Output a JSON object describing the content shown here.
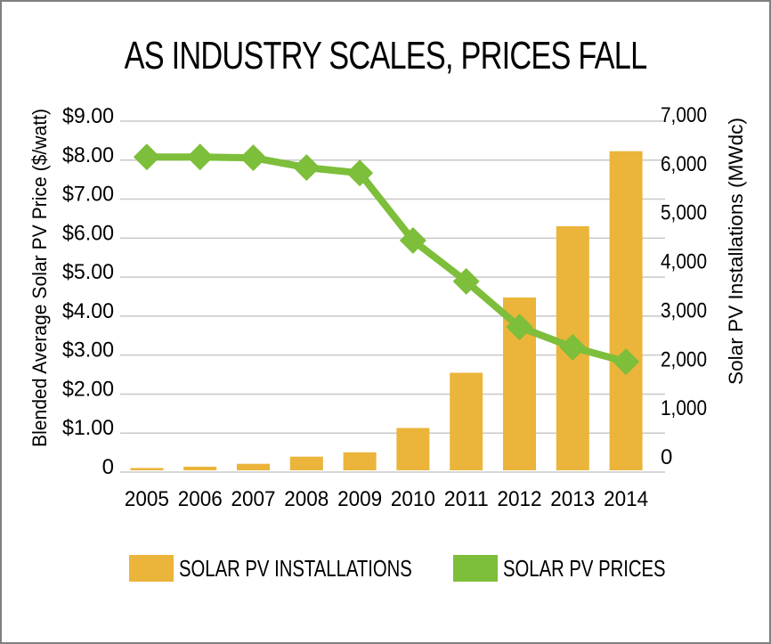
{
  "chart_data": {
    "type": "bar+line",
    "title": "AS INDUSTRY SCALES, PRICES FALL",
    "categories": [
      "2005",
      "2006",
      "2007",
      "2008",
      "2009",
      "2010",
      "2011",
      "2012",
      "2013",
      "2014"
    ],
    "series": [
      {
        "name": "SOLAR PV INSTALLATIONS",
        "type": "bar",
        "axis": "right",
        "color": "#EBB43A",
        "values": [
          79,
          105,
          160,
          298,
          382,
          852,
          1919,
          3373,
          4751,
          6201
        ]
      },
      {
        "name": "SOLAR PV PRICES",
        "type": "line",
        "marker": "diamond",
        "axis": "left",
        "color": "#7DBE3A",
        "values": [
          8.08,
          8.08,
          8.06,
          7.81,
          7.67,
          5.94,
          4.89,
          3.72,
          3.2,
          2.83
        ]
      }
    ],
    "left_axis": {
      "label": "Blended Average Solar PV Price ($/watt)",
      "range": [
        0,
        9
      ],
      "ticks": [
        0,
        1,
        2,
        3,
        4,
        5,
        6,
        7,
        8,
        9
      ],
      "tick_labels": [
        "0",
        "$1.00",
        "$2.00",
        "$3.00",
        "$4.00",
        "$5.00",
        "$6.00",
        "$7.00",
        "$8.00",
        "$9.00"
      ]
    },
    "right_axis": {
      "label": "Solar PV Installations (MWdc)",
      "range": [
        0,
        7000
      ],
      "ticks": [
        0,
        1000,
        2000,
        3000,
        4000,
        5000,
        6000,
        7000
      ],
      "tick_labels": [
        "0",
        "1,000",
        "2,000",
        "3,000",
        "4,000",
        "5,000",
        "6,000",
        "7,000"
      ]
    },
    "xlabel": "",
    "grid": true,
    "grid_color": "#C8C8C8",
    "legend_position": "bottom"
  }
}
